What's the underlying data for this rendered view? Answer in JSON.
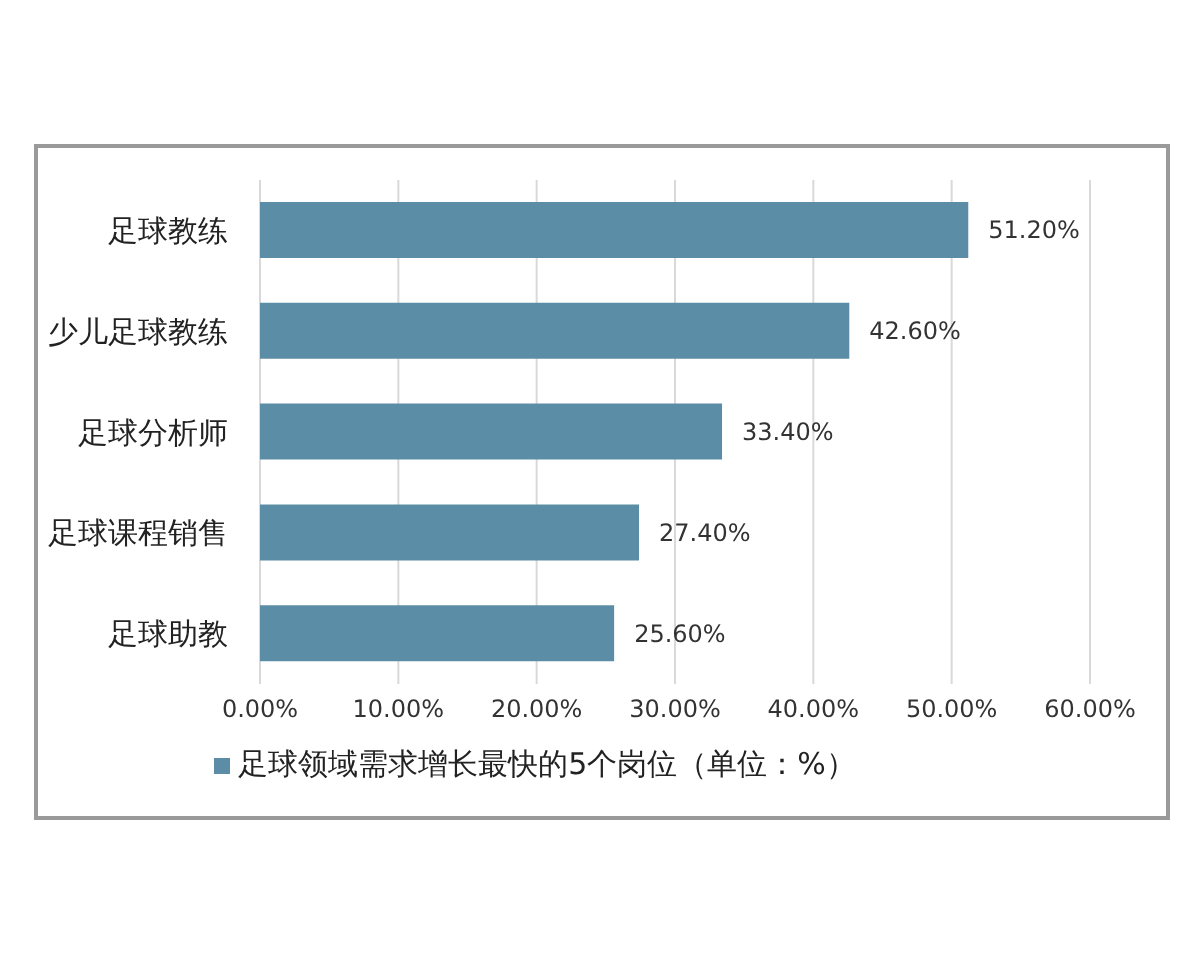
{
  "chart_data": {
    "type": "bar",
    "orientation": "horizontal",
    "categories": [
      "足球教练",
      "少儿足球教练",
      "足球分析师",
      "足球课程销售",
      "足球助教"
    ],
    "series": [
      {
        "name": "足球领域需求增长最快的5个岗位（单位：%）",
        "color": "#5b8ea6",
        "values": [
          51.2,
          42.6,
          33.4,
          27.4,
          25.6
        ],
        "value_labels": [
          "51.20%",
          "42.60%",
          "33.40%",
          "27.40%",
          "25.60%"
        ]
      }
    ],
    "xlim": [
      0,
      60
    ],
    "xticks": [
      {
        "value": 0,
        "label": "0.00%"
      },
      {
        "value": 10,
        "label": "10.00%"
      },
      {
        "value": 20,
        "label": "20.00%"
      },
      {
        "value": 30,
        "label": "30.00%"
      },
      {
        "value": 40,
        "label": "40.00%"
      },
      {
        "value": 50,
        "label": "50.00%"
      },
      {
        "value": 60,
        "label": "60.00%"
      }
    ],
    "grid": "x",
    "legend": "bottom"
  }
}
